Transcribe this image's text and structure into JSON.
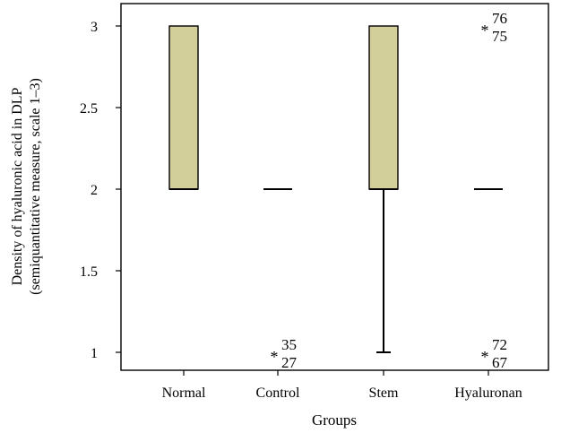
{
  "chart_data": {
    "type": "box",
    "xlabel": "Groups",
    "ylabel": "Density of hyaluronic acid in DLP",
    "ylabel2": "(semiquantitative measure, scale 1–3)",
    "ylim": [
      0.88,
      3.1
    ],
    "yticks": [
      1,
      1.5,
      2,
      2.5,
      3
    ],
    "ytick_labels": [
      "1",
      "1.5",
      "2",
      "2.5",
      "3"
    ],
    "categories": [
      "Normal",
      "Control",
      "Stem",
      "Hyaluronan"
    ],
    "box_fill": "#d3cf9a",
    "boxes": [
      {
        "q1": 2,
        "median": 2,
        "q3": 3,
        "whisker_low": 2,
        "whisker_high": 3
      },
      {
        "q1": 2,
        "median": 2,
        "q3": 2,
        "whisker_low": 2,
        "whisker_high": 2
      },
      {
        "q1": 2,
        "median": 2,
        "q3": 3,
        "whisker_low": 1,
        "whisker_high": 3
      },
      {
        "q1": 2,
        "median": 2,
        "q3": 2,
        "whisker_low": 2,
        "whisker_high": 2
      }
    ],
    "outliers": [
      {
        "group": "Control",
        "value": 1,
        "labels": [
          "35",
          "27"
        ]
      },
      {
        "group": "Hyaluronan",
        "value": 3,
        "labels": [
          "76",
          "75"
        ]
      },
      {
        "group": "Hyaluronan",
        "value": 1,
        "labels": [
          "72",
          "67"
        ]
      }
    ]
  }
}
